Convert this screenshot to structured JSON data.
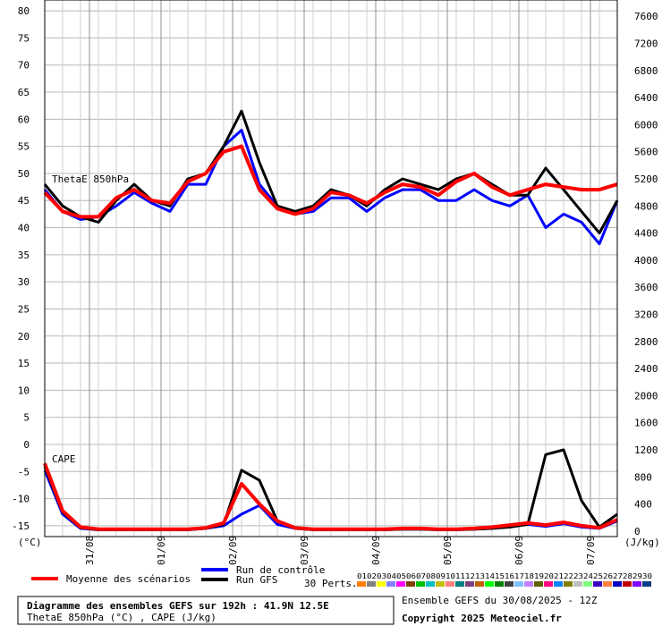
{
  "chart_data": {
    "type": "line",
    "left_axis": {
      "unit_label": "(°C)",
      "ylim": [
        -17,
        82
      ],
      "ticks": [
        -15,
        -10,
        -5,
        0,
        5,
        10,
        15,
        20,
        25,
        30,
        35,
        40,
        45,
        50,
        55,
        60,
        65,
        70,
        75,
        80
      ]
    },
    "right_axis": {
      "unit_label": "(J/kg)",
      "ylim": [
        -80,
        7840
      ],
      "ticks": [
        0,
        400,
        800,
        1200,
        1600,
        2000,
        2400,
        2800,
        3200,
        3600,
        4000,
        4400,
        4800,
        5200,
        5600,
        6000,
        6400,
        6800,
        7200,
        7600
      ]
    },
    "x_axis": {
      "xlim": [
        0,
        64
      ],
      "tick_positions": [
        5,
        13,
        21,
        29,
        37,
        45,
        53,
        61
      ],
      "tick_labels": [
        "31/08",
        "01/09",
        "02/09",
        "03/09",
        "04/09",
        "05/09",
        "06/09",
        "07/09"
      ],
      "minor_grid_step": 2
    },
    "panel_labels": {
      "thetae": "ThetaE 850hPa",
      "cape": "CAPE"
    },
    "thetae_mean": {
      "name": "Moyenne des scénarios",
      "x": [
        0,
        2,
        4,
        6,
        8,
        10,
        12,
        14,
        16,
        18,
        20,
        22,
        24,
        26,
        28,
        30,
        32,
        34,
        36,
        38,
        40,
        42,
        44,
        46,
        48,
        50,
        52,
        54,
        56,
        58,
        60,
        62,
        64
      ],
      "y": [
        46.5,
        43,
        42,
        42,
        45.5,
        47,
        45,
        44.5,
        48.5,
        50,
        54,
        55,
        47,
        43.5,
        42.5,
        43.5,
        46.5,
        46,
        44.5,
        46.5,
        48,
        47.5,
        46,
        48.5,
        50,
        47.5,
        46,
        47,
        48,
        47.5,
        47,
        47,
        48
      ]
    },
    "thetae_control": {
      "name": "Run de contrôle",
      "x": [
        0,
        2,
        4,
        6,
        8,
        10,
        12,
        14,
        16,
        18,
        20,
        22,
        24,
        26,
        28,
        30,
        32,
        34,
        36,
        38,
        40,
        42,
        44,
        46,
        48,
        50,
        52,
        54,
        56,
        58,
        60,
        62,
        64
      ],
      "y": [
        47,
        43,
        41.5,
        42,
        44,
        46.5,
        44.5,
        43,
        48,
        48,
        55,
        58,
        48,
        44,
        42.5,
        43,
        45.5,
        45.5,
        43,
        45.5,
        47,
        47,
        45,
        45,
        47,
        45,
        44,
        46,
        40,
        42.5,
        41,
        37,
        45
      ]
    },
    "thetae_gfs": {
      "name": "Run GFS",
      "x": [
        0,
        2,
        4,
        6,
        8,
        10,
        12,
        14,
        16,
        18,
        20,
        22,
        24,
        26,
        28,
        30,
        32,
        34,
        36,
        38,
        40,
        42,
        44,
        46,
        48,
        50,
        52,
        54,
        56,
        58,
        60,
        62,
        64
      ],
      "y": [
        48,
        44,
        42,
        41,
        45,
        48,
        45,
        44,
        49,
        50,
        55,
        61.5,
        52,
        44,
        43,
        44,
        47,
        46,
        44,
        47,
        49,
        48,
        47,
        49,
        50,
        48,
        46,
        46,
        51,
        47,
        43,
        39,
        45
      ]
    },
    "cape_mean": {
      "x": [
        0,
        2,
        4,
        6,
        8,
        10,
        12,
        14,
        16,
        18,
        20,
        22,
        24,
        26,
        28,
        30,
        32,
        34,
        36,
        38,
        40,
        42,
        44,
        46,
        48,
        50,
        52,
        54,
        56,
        58,
        60,
        62,
        64
      ],
      "y": [
        1000,
        300,
        60,
        30,
        30,
        30,
        30,
        30,
        30,
        50,
        120,
        700,
        400,
        150,
        50,
        30,
        30,
        30,
        30,
        30,
        40,
        40,
        30,
        30,
        40,
        60,
        90,
        120,
        90,
        130,
        80,
        50,
        170
      ]
    },
    "cape_control": {
      "x": [
        0,
        2,
        4,
        6,
        8,
        10,
        12,
        14,
        16,
        18,
        20,
        22,
        24,
        26,
        28,
        30,
        32,
        34,
        36,
        38,
        40,
        42,
        44,
        46,
        48,
        50,
        52,
        54,
        56,
        58,
        60,
        62,
        64
      ],
      "y": [
        900,
        250,
        40,
        20,
        20,
        20,
        20,
        20,
        20,
        40,
        80,
        250,
        380,
        100,
        40,
        20,
        20,
        20,
        20,
        20,
        30,
        30,
        20,
        20,
        30,
        40,
        80,
        100,
        70,
        110,
        60,
        40,
        150
      ]
    },
    "cape_gfs": {
      "x": [
        0,
        2,
        4,
        6,
        8,
        10,
        12,
        14,
        16,
        18,
        20,
        22,
        24,
        26,
        28,
        30,
        32,
        34,
        36,
        38,
        40,
        42,
        44,
        46,
        48,
        50,
        52,
        54,
        56,
        58,
        60,
        62,
        64
      ],
      "y": [
        950,
        280,
        50,
        20,
        20,
        20,
        20,
        20,
        20,
        40,
        100,
        900,
        750,
        150,
        40,
        20,
        20,
        20,
        20,
        20,
        30,
        30,
        20,
        20,
        30,
        40,
        60,
        100,
        1130,
        1200,
        450,
        60,
        250
      ]
    },
    "legend": {
      "mean": "Moyenne des scénarios",
      "control": "Run de contrôle",
      "gfs": "Run GFS",
      "perts": "30 Perts.",
      "pert_numbers": "010203040506070809101112131415161718192021222324252627282930",
      "pert_colors": [
        "#ff8000",
        "#808080",
        "#ffff00",
        "#8080ff",
        "#ff00ff",
        "#804000",
        "#00c000",
        "#00c0c0",
        "#c0c000",
        "#ff8080",
        "#008080",
        "#804080",
        "#c06000",
        "#00ff00",
        "#008000",
        "#404040",
        "#80c0ff",
        "#c080ff",
        "#606000",
        "#ff0080",
        "#0080ff",
        "#808000",
        "#c0c0c0",
        "#80ff80",
        "#4000c0",
        "#ff8040",
        "#0000c0",
        "#c00000",
        "#8000ff",
        "#004080"
      ]
    },
    "colors": {
      "mean": "#ff0000",
      "control": "#0000ff",
      "gfs": "#000000"
    },
    "footer": {
      "title": "Diagramme des ensembles GEFS sur 192h : 41.9N 12.5E",
      "subtitle": "ThetaE 850hPa (°C) , CAPE (J/kg)",
      "run": "Ensemble GEFS du 30/08/2025 - 12Z",
      "copyright": "Copyright 2025 Meteociel.fr"
    }
  }
}
